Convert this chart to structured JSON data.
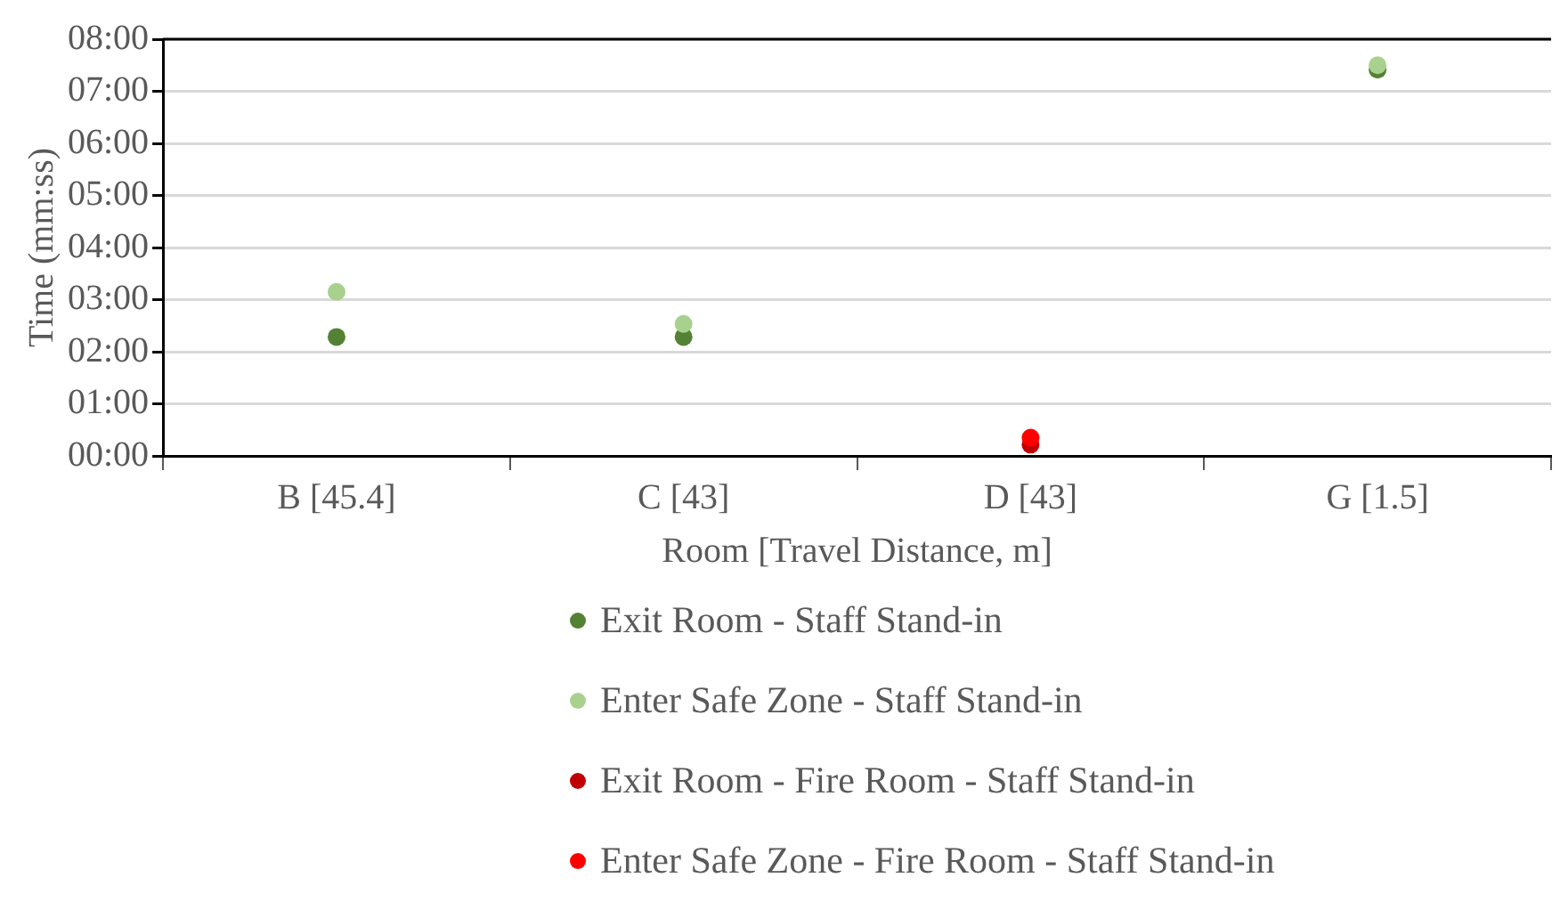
{
  "chart_data": {
    "type": "scatter",
    "xlabel": "Room [Travel Distance, m]",
    "ylabel": "Time (mm:ss)",
    "categories": [
      "B [45.4]",
      "C [43]",
      "D [43]",
      "G [1.5]"
    ],
    "series": [
      {
        "name": "Exit Room - Staff Stand-in",
        "color": "#548235",
        "values": [
          137,
          137,
          null,
          445
        ]
      },
      {
        "name": "Enter Safe Zone - Staff Stand-in",
        "color": "#a9d18e",
        "values": [
          189,
          152,
          null,
          450
        ]
      },
      {
        "name": "Exit Room - Fire Room - Staff Stand-in",
        "color": "#c00000",
        "values": [
          null,
          null,
          13,
          null
        ]
      },
      {
        "name": "Enter Safe Zone - Fire Room - Staff Stand-in",
        "color": "#ff0000",
        "values": [
          null,
          null,
          21,
          null
        ]
      }
    ],
    "ylim": [
      0,
      480
    ],
    "yticks": [
      {
        "value": 0,
        "label": "00:00"
      },
      {
        "value": 60,
        "label": "01:00"
      },
      {
        "value": 120,
        "label": "02:00"
      },
      {
        "value": 180,
        "label": "03:00"
      },
      {
        "value": 240,
        "label": "04:00"
      },
      {
        "value": 300,
        "label": "05:00"
      },
      {
        "value": 360,
        "label": "06:00"
      },
      {
        "value": 420,
        "label": "07:00"
      },
      {
        "value": 480,
        "label": "08:00"
      }
    ],
    "grid": "y",
    "legend": "bottom",
    "marker": "circle"
  }
}
